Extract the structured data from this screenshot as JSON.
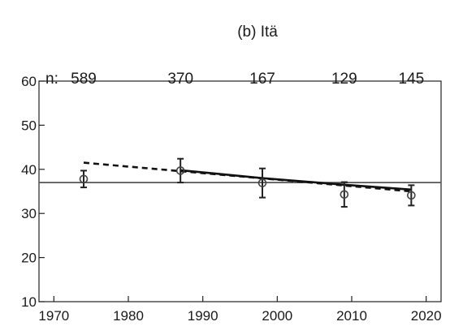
{
  "chart_data": {
    "type": "scatter",
    "title": "(b) Itä",
    "xlabel": "",
    "ylabel": "",
    "xlim": [
      1968,
      2022
    ],
    "ylim": [
      10,
      60
    ],
    "x_ticks": [
      1970,
      1980,
      1990,
      2000,
      2010,
      2020
    ],
    "y_ticks": [
      10,
      20,
      30,
      40,
      50,
      60
    ],
    "grid": false,
    "n_prefix": "n:",
    "sample_sizes": [
      {
        "x": 1974,
        "label": "589"
      },
      {
        "x": 1987,
        "label": "370"
      },
      {
        "x": 1998,
        "label": "167"
      },
      {
        "x": 2009,
        "label": "129"
      },
      {
        "x": 2018,
        "label": "145"
      }
    ],
    "series": [
      {
        "type": "scatter-errorbar",
        "marker": "open-circle",
        "points": [
          {
            "x": 1974,
            "y": 37.8,
            "err_low": 35.9,
            "err_high": 39.7
          },
          {
            "x": 1987,
            "y": 39.7,
            "err_low": 37.0,
            "err_high": 42.4
          },
          {
            "x": 1998,
            "y": 36.9,
            "err_low": 33.6,
            "err_high": 40.2
          },
          {
            "x": 2009,
            "y": 34.3,
            "err_low": 31.5,
            "err_high": 37.1
          },
          {
            "x": 2018,
            "y": 34.1,
            "err_low": 31.8,
            "err_high": 36.4
          }
        ]
      },
      {
        "type": "line",
        "style": "dashed",
        "x": [
          1974,
          2018
        ],
        "y": [
          41.5,
          35.0
        ]
      },
      {
        "type": "line",
        "style": "solid",
        "x": [
          1987,
          1998,
          2009,
          2018
        ],
        "y": [
          39.8,
          38.0,
          36.5,
          35.4
        ]
      }
    ],
    "reference_line": {
      "y": 37.0
    },
    "colors": {
      "axis": "#222222",
      "marker": "#222222",
      "text": "#1a1a1a"
    }
  }
}
